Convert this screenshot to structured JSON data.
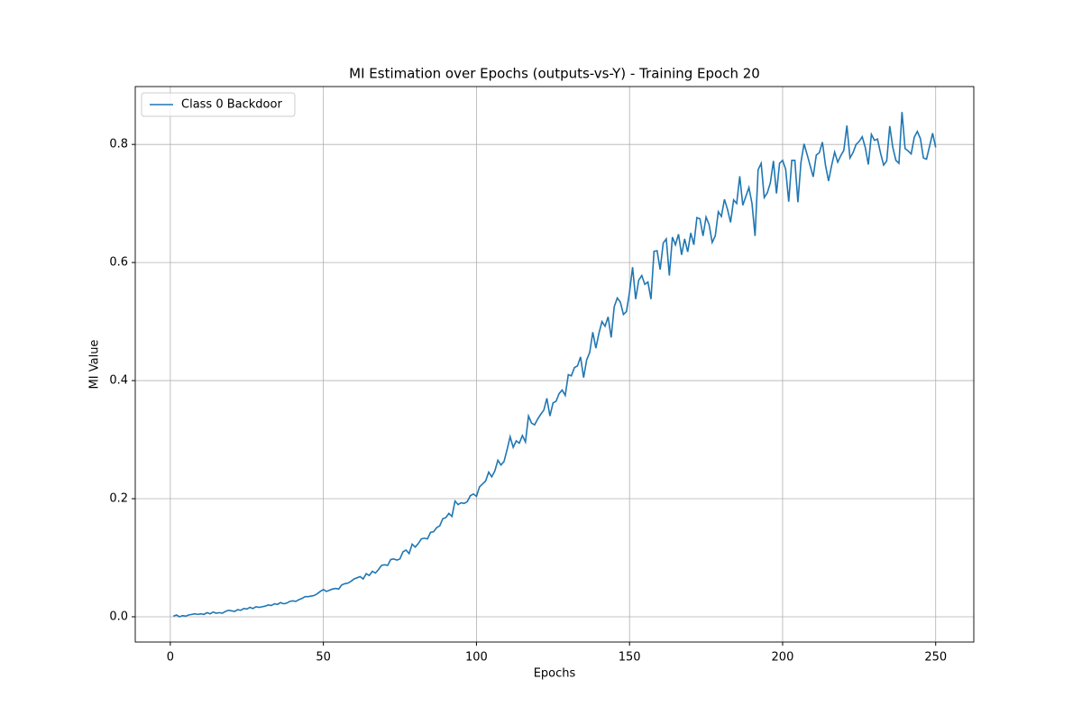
{
  "chart_data": {
    "type": "line",
    "title": "MI Estimation over Epochs (outputs-vs-Y) - Training Epoch 20",
    "x_label": "Epochs",
    "y_label": "MI Value",
    "x": [
      1,
      2,
      3,
      4,
      5,
      6,
      7,
      8,
      9,
      10,
      11,
      12,
      13,
      14,
      15,
      16,
      17,
      18,
      19,
      20,
      21,
      22,
      23,
      24,
      25,
      26,
      27,
      28,
      29,
      30,
      31,
      32,
      33,
      34,
      35,
      36,
      37,
      38,
      39,
      40,
      41,
      42,
      43,
      44,
      45,
      46,
      47,
      48,
      49,
      50,
      51,
      52,
      53,
      54,
      55,
      56,
      57,
      58,
      59,
      60,
      61,
      62,
      63,
      64,
      65,
      66,
      67,
      68,
      69,
      70,
      71,
      72,
      73,
      74,
      75,
      76,
      77,
      78,
      79,
      80,
      81,
      82,
      83,
      84,
      85,
      86,
      87,
      88,
      89,
      90,
      91,
      92,
      93,
      94,
      95,
      96,
      97,
      98,
      99,
      100,
      101,
      102,
      103,
      104,
      105,
      106,
      107,
      108,
      109,
      110,
      111,
      112,
      113,
      114,
      115,
      116,
      117,
      118,
      119,
      120,
      121,
      122,
      123,
      124,
      125,
      126,
      127,
      128,
      129,
      130,
      131,
      132,
      133,
      134,
      135,
      136,
      137,
      138,
      139,
      140,
      141,
      142,
      143,
      144,
      145,
      146,
      147,
      148,
      149,
      150,
      151,
      152,
      153,
      154,
      155,
      156,
      157,
      158,
      159,
      160,
      161,
      162,
      163,
      164,
      165,
      166,
      167,
      168,
      169,
      170,
      171,
      172,
      173,
      174,
      175,
      176,
      177,
      178,
      179,
      180,
      181,
      182,
      183,
      184,
      185,
      186,
      187,
      188,
      189,
      190,
      191,
      192,
      193,
      194,
      195,
      196,
      197,
      198,
      199,
      200,
      201,
      202,
      203,
      204,
      205,
      206,
      207,
      208,
      209,
      210,
      211,
      212,
      213,
      214,
      215,
      216,
      217,
      218,
      219,
      220,
      221,
      222,
      223,
      224,
      225,
      226,
      227,
      228,
      229,
      230,
      231,
      232,
      233,
      234,
      235,
      236,
      237,
      238,
      239,
      240,
      241,
      242,
      243,
      244,
      245,
      246,
      247,
      248,
      249,
      250
    ],
    "series": [
      {
        "name": "Class 0 Backdoor",
        "color": "#1f77b4",
        "values": [
          0.001,
          0.003,
          0.0,
          0.002,
          0.001,
          0.003,
          0.004,
          0.005,
          0.004,
          0.005,
          0.004,
          0.007,
          0.005,
          0.008,
          0.006,
          0.007,
          0.006,
          0.009,
          0.011,
          0.01,
          0.009,
          0.012,
          0.011,
          0.014,
          0.013,
          0.016,
          0.014,
          0.017,
          0.016,
          0.017,
          0.018,
          0.02,
          0.019,
          0.022,
          0.021,
          0.024,
          0.022,
          0.023,
          0.026,
          0.027,
          0.026,
          0.029,
          0.031,
          0.034,
          0.034,
          0.035,
          0.036,
          0.039,
          0.043,
          0.046,
          0.043,
          0.045,
          0.047,
          0.048,
          0.047,
          0.054,
          0.056,
          0.057,
          0.06,
          0.064,
          0.066,
          0.068,
          0.064,
          0.073,
          0.07,
          0.077,
          0.074,
          0.08,
          0.087,
          0.088,
          0.087,
          0.097,
          0.098,
          0.096,
          0.098,
          0.11,
          0.113,
          0.107,
          0.123,
          0.118,
          0.124,
          0.132,
          0.133,
          0.132,
          0.143,
          0.144,
          0.151,
          0.154,
          0.166,
          0.168,
          0.175,
          0.17,
          0.196,
          0.19,
          0.193,
          0.192,
          0.195,
          0.205,
          0.208,
          0.204,
          0.22,
          0.225,
          0.23,
          0.245,
          0.237,
          0.247,
          0.265,
          0.257,
          0.263,
          0.283,
          0.305,
          0.287,
          0.298,
          0.294,
          0.307,
          0.296,
          0.34,
          0.328,
          0.325,
          0.335,
          0.343,
          0.35,
          0.37,
          0.34,
          0.362,
          0.365,
          0.378,
          0.384,
          0.375,
          0.41,
          0.408,
          0.422,
          0.425,
          0.44,
          0.405,
          0.435,
          0.448,
          0.482,
          0.455,
          0.48,
          0.5,
          0.492,
          0.508,
          0.473,
          0.525,
          0.54,
          0.533,
          0.512,
          0.517,
          0.55,
          0.592,
          0.538,
          0.57,
          0.578,
          0.563,
          0.567,
          0.538,
          0.619,
          0.62,
          0.588,
          0.633,
          0.64,
          0.578,
          0.643,
          0.63,
          0.648,
          0.613,
          0.64,
          0.618,
          0.65,
          0.63,
          0.676,
          0.674,
          0.645,
          0.677,
          0.664,
          0.634,
          0.645,
          0.686,
          0.678,
          0.707,
          0.69,
          0.668,
          0.706,
          0.7,
          0.746,
          0.697,
          0.712,
          0.727,
          0.7,
          0.645,
          0.757,
          0.768,
          0.71,
          0.718,
          0.735,
          0.772,
          0.717,
          0.768,
          0.773,
          0.758,
          0.703,
          0.773,
          0.773,
          0.702,
          0.77,
          0.801,
          0.783,
          0.764,
          0.745,
          0.782,
          0.786,
          0.804,
          0.765,
          0.738,
          0.764,
          0.787,
          0.77,
          0.781,
          0.79,
          0.832,
          0.777,
          0.786,
          0.8,
          0.805,
          0.813,
          0.795,
          0.766,
          0.817,
          0.807,
          0.809,
          0.785,
          0.765,
          0.772,
          0.831,
          0.795,
          0.773,
          0.768,
          0.855,
          0.793,
          0.789,
          0.784,
          0.812,
          0.822,
          0.81,
          0.777,
          0.775,
          0.797,
          0.819,
          0.795
        ]
      }
    ],
    "xlim": [
      -11.45,
      262.45
    ],
    "ylim": [
      -0.0428,
      0.898
    ],
    "xticks": [
      0,
      50,
      100,
      150,
      200,
      250
    ],
    "yticks": [
      {
        "value": 0,
        "label": "0.0"
      },
      0.2,
      0.4,
      0.6,
      0.8
    ],
    "grid": true,
    "legend": "upper left"
  }
}
